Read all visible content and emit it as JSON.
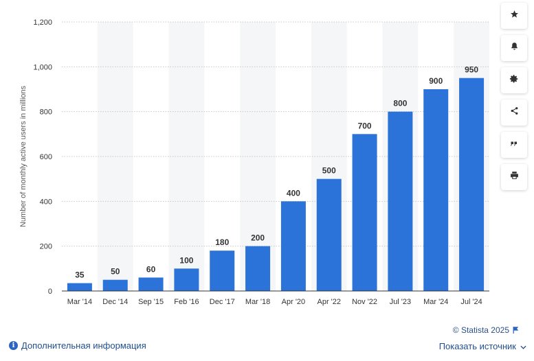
{
  "chart_data": {
    "type": "bar",
    "categories": [
      "Mar '14",
      "Dec '14",
      "Sep '15",
      "Feb '16",
      "Dec '17",
      "Mar '18",
      "Apr '20",
      "Apr '22",
      "Nov '22",
      "Jul '23",
      "Mar '24",
      "Jul '24"
    ],
    "values": [
      35,
      50,
      60,
      100,
      180,
      200,
      400,
      500,
      700,
      800,
      900,
      950
    ],
    "value_labels": [
      "35",
      "50",
      "60",
      "100",
      "180",
      "200",
      "400",
      "500",
      "700",
      "800",
      "900",
      "950"
    ],
    "ylabel": "Number of monthly active users in millions",
    "ylim": [
      0,
      1200
    ],
    "yticks": [
      0,
      200,
      400,
      600,
      800,
      1000,
      1200
    ],
    "ytick_labels": [
      "0",
      "200",
      "400",
      "600",
      "800",
      "1,000",
      "1,200"
    ],
    "grid": true,
    "bar_color": "#2b72d9",
    "band_color": "#f5f6f8",
    "grid_color": "#c8c8c8"
  },
  "toolbar": {
    "buttons": [
      {
        "icon": "star-icon",
        "name": "favorite-button"
      },
      {
        "icon": "bell-icon",
        "name": "notification-button"
      },
      {
        "icon": "gear-icon",
        "name": "settings-button"
      },
      {
        "icon": "share-icon",
        "name": "share-button"
      },
      {
        "icon": "quote-icon",
        "name": "cite-button"
      },
      {
        "icon": "print-icon",
        "name": "print-button"
      }
    ]
  },
  "footer": {
    "copyright": "© Statista 2025",
    "more_info": "Дополнительная информация",
    "show_source": "Показать источник"
  },
  "colors": {
    "link": "#1f4e8c",
    "accent": "#2b64c3"
  }
}
